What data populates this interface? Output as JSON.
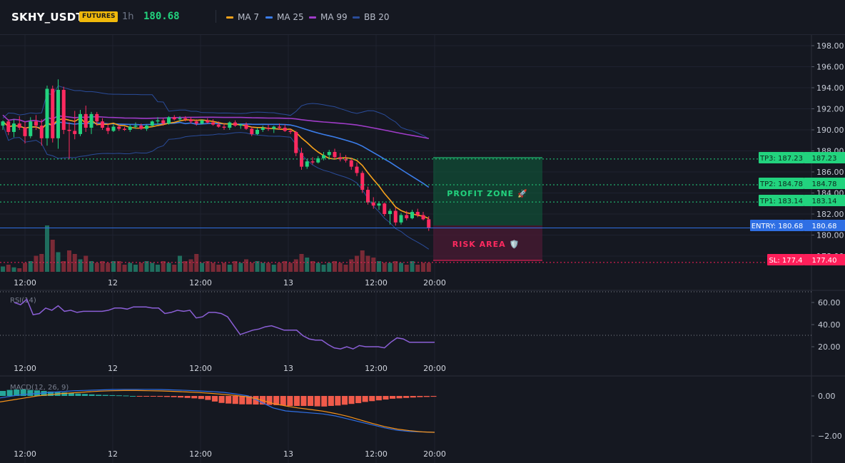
{
  "header": {
    "symbol": "SKHY_USDT",
    "market_badge": "FUTURES",
    "timeframe": "1h",
    "last_price": "180.68",
    "price_color": "#22d37e"
  },
  "indicators": [
    {
      "label": "MA 7",
      "color": "#f7a21b"
    },
    {
      "label": "MA 25",
      "color": "#3b7dea"
    },
    {
      "label": "MA 99",
      "color": "#a03cc9"
    },
    {
      "label": "BB 20",
      "color": "#2a4c9a"
    }
  ],
  "price_axis": {
    "ticks": [
      "198.00",
      "196.00",
      "194.00",
      "192.00",
      "190.00",
      "188.00",
      "186.00",
      "184.00",
      "182.00",
      "180.00",
      "178.00"
    ]
  },
  "time_axis": {
    "labels": [
      "12:00",
      "12",
      "12:00",
      "13",
      "12:00",
      "20:00"
    ]
  },
  "levels": {
    "tp3": {
      "label": "TP3: 187.23",
      "value": "187.23",
      "price": 187.23,
      "color": "#22d37e"
    },
    "tp2": {
      "label": "TP2: 184.78",
      "value": "184.78",
      "price": 184.78,
      "color": "#22d37e"
    },
    "tp1": {
      "label": "TP1: 183.14",
      "value": "183.14",
      "price": 183.14,
      "color": "#22d37e"
    },
    "entry": {
      "label": "ENTRY: 180.68",
      "value": "180.68",
      "price": 180.68,
      "color": "#2f6fe4"
    },
    "sl": {
      "label": "SL: 177.4",
      "value": "177.40",
      "price": 177.4,
      "color": "#ff1f5a"
    }
  },
  "zones": {
    "profit_label": "PROFIT ZONE 🚀",
    "risk_label": "RISK AREA 🛡️"
  },
  "rsi": {
    "title": "RSI(14)",
    "ticks": [
      "60.00",
      "40.00",
      "20.00"
    ],
    "overbought": 70,
    "oversold": 30,
    "color": "#8b5fd6"
  },
  "macd": {
    "title": "MACD(12, 26, 9)",
    "ticks": [
      "0.00",
      "−2.00"
    ],
    "macd_color": "#2f6fe4",
    "signal_color": "#f7931a",
    "hist_pos_color": "#26a69a",
    "hist_neg_color": "#f05a4a"
  },
  "chart_data": {
    "type": "candlestick",
    "title": "",
    "y_range": [
      177,
      199
    ],
    "candles": [
      [
        190.4,
        190.9,
        190.0,
        190.8
      ],
      [
        190.8,
        191.0,
        189.5,
        189.8
      ],
      [
        189.8,
        191.0,
        189.3,
        190.6
      ],
      [
        190.6,
        191.3,
        190.0,
        190.2
      ],
      [
        190.2,
        190.8,
        188.7,
        189.4
      ],
      [
        189.4,
        191.2,
        189.2,
        190.8
      ],
      [
        190.8,
        191.4,
        190.0,
        190.4
      ],
      [
        190.4,
        191.0,
        188.5,
        189.2
      ],
      [
        189.2,
        194.2,
        188.5,
        193.9
      ],
      [
        193.9,
        194.2,
        188.8,
        189.2
      ],
      [
        189.2,
        194.8,
        188.2,
        193.8
      ],
      [
        193.8,
        194.1,
        189.6,
        190.0
      ],
      [
        190.0,
        190.7,
        187.2,
        189.9
      ],
      [
        189.9,
        191.8,
        189.1,
        189.6
      ],
      [
        189.6,
        191.9,
        189.4,
        191.5
      ],
      [
        191.5,
        192.3,
        189.8,
        190.2
      ],
      [
        190.2,
        191.7,
        189.6,
        191.5
      ],
      [
        191.5,
        191.7,
        190.4,
        190.8
      ],
      [
        190.8,
        191.1,
        190.0,
        190.2
      ],
      [
        190.2,
        190.6,
        189.6,
        189.9
      ],
      [
        189.9,
        190.5,
        189.8,
        190.3
      ],
      [
        190.3,
        190.5,
        189.9,
        190.1
      ],
      [
        190.1,
        190.3,
        189.9,
        190.0
      ],
      [
        190.0,
        190.5,
        189.8,
        190.3
      ],
      [
        190.3,
        190.7,
        190.1,
        190.4
      ],
      [
        190.4,
        190.6,
        190.0,
        190.1
      ],
      [
        190.1,
        190.5,
        189.9,
        190.4
      ],
      [
        190.4,
        190.9,
        190.3,
        190.8
      ],
      [
        190.8,
        191.2,
        190.5,
        190.9
      ],
      [
        190.9,
        191.1,
        190.4,
        190.6
      ],
      [
        190.6,
        191.3,
        190.5,
        191.2
      ],
      [
        191.2,
        191.4,
        190.9,
        191.0
      ],
      [
        191.0,
        191.3,
        190.8,
        191.1
      ],
      [
        191.1,
        191.3,
        190.8,
        191.0
      ],
      [
        191.0,
        191.2,
        190.6,
        190.8
      ],
      [
        190.8,
        191.0,
        190.4,
        190.6
      ],
      [
        190.6,
        191.0,
        190.5,
        190.9
      ],
      [
        190.9,
        191.1,
        190.6,
        190.7
      ],
      [
        190.7,
        191.0,
        190.4,
        190.5
      ],
      [
        190.5,
        190.8,
        190.2,
        190.3
      ],
      [
        190.3,
        190.6,
        190.0,
        190.2
      ],
      [
        190.2,
        190.8,
        190.0,
        190.7
      ],
      [
        190.7,
        190.9,
        190.3,
        190.4
      ],
      [
        190.4,
        190.6,
        190.1,
        190.5
      ],
      [
        190.5,
        190.7,
        190.0,
        190.1
      ],
      [
        190.1,
        190.3,
        189.4,
        189.6
      ],
      [
        189.6,
        190.2,
        189.5,
        190.0
      ],
      [
        190.0,
        190.4,
        189.8,
        190.2
      ],
      [
        190.2,
        190.5,
        189.9,
        190.1
      ],
      [
        190.1,
        190.4,
        189.7,
        190.3
      ],
      [
        190.3,
        190.6,
        190.0,
        190.2
      ],
      [
        190.2,
        190.5,
        189.8,
        189.9
      ],
      [
        189.9,
        190.1,
        189.6,
        189.8
      ],
      [
        189.8,
        189.9,
        187.5,
        187.8
      ],
      [
        187.8,
        188.3,
        186.2,
        186.5
      ],
      [
        186.5,
        187.2,
        186.3,
        187.0
      ],
      [
        187.0,
        187.4,
        186.7,
        186.9
      ],
      [
        186.9,
        187.5,
        186.8,
        187.3
      ],
      [
        187.3,
        187.9,
        187.1,
        187.6
      ],
      [
        187.6,
        188.1,
        187.2,
        187.9
      ],
      [
        187.9,
        188.2,
        187.2,
        187.4
      ],
      [
        187.4,
        187.8,
        187.0,
        187.2
      ],
      [
        187.2,
        187.6,
        186.9,
        187.1
      ],
      [
        187.1,
        187.3,
        186.2,
        186.5
      ],
      [
        186.5,
        186.9,
        185.6,
        185.9
      ],
      [
        185.9,
        186.1,
        184.0,
        184.3
      ],
      [
        184.3,
        184.6,
        182.9,
        183.1
      ],
      [
        183.1,
        183.6,
        182.5,
        182.8
      ],
      [
        182.8,
        183.2,
        182.4,
        183.0
      ],
      [
        183.0,
        183.1,
        181.8,
        182.0
      ],
      [
        182.0,
        182.5,
        181.0,
        182.3
      ],
      [
        182.3,
        182.6,
        180.9,
        181.2
      ],
      [
        181.2,
        182.1,
        181.0,
        181.9
      ],
      [
        181.9,
        182.3,
        181.4,
        181.6
      ],
      [
        181.6,
        182.4,
        181.5,
        182.2
      ],
      [
        182.2,
        182.5,
        181.7,
        181.9
      ],
      [
        181.9,
        182.2,
        181.4,
        181.5
      ],
      [
        181.5,
        181.8,
        180.4,
        180.7
      ]
    ],
    "volume_relative": [
      0.3,
      0.4,
      0.25,
      0.2,
      0.5,
      0.6,
      0.9,
      1.0,
      2.6,
      1.8,
      1.1,
      0.6,
      1.2,
      1.0,
      0.7,
      0.9,
      0.6,
      0.5,
      0.6,
      0.5,
      0.6,
      0.6,
      0.4,
      0.5,
      0.4,
      0.5,
      0.6,
      0.5,
      0.4,
      0.6,
      0.5,
      0.4,
      0.9,
      0.6,
      0.7,
      1.0,
      0.5,
      0.6,
      0.5,
      0.4,
      0.5,
      0.4,
      0.6,
      0.5,
      0.7,
      0.5,
      0.6,
      0.5,
      0.5,
      0.4,
      0.5,
      0.6,
      0.5,
      0.7,
      1.0,
      0.8,
      0.6,
      0.5,
      0.4,
      0.5,
      0.6,
      0.5,
      0.4,
      0.7,
      0.9,
      1.2,
      0.9,
      0.8,
      0.6,
      0.5,
      0.5,
      0.6,
      0.5,
      0.4,
      0.6,
      0.4,
      0.5,
      0.5
    ],
    "rsi_values": [
      60,
      58,
      63,
      49,
      50,
      55,
      53,
      57,
      52,
      53,
      51,
      52,
      52,
      52,
      52,
      53,
      55,
      55,
      54,
      56,
      56,
      56,
      55,
      55,
      50,
      51,
      53,
      52,
      53,
      46,
      47,
      51,
      51,
      50,
      47,
      39,
      31,
      33,
      35,
      36,
      38,
      39,
      37,
      35,
      35,
      35,
      30,
      27,
      26,
      26,
      22,
      19,
      18,
      20,
      18,
      21,
      20,
      20,
      20,
      19,
      24,
      28,
      27,
      24,
      24,
      24,
      24,
      24
    ],
    "macd_hist": [
      0.25,
      0.3,
      0.32,
      0.33,
      0.3,
      0.28,
      0.25,
      0.22,
      0.2,
      0.18,
      0.15,
      0.12,
      0.1,
      0.08,
      0.06,
      0.05,
      0.04,
      0.03,
      0.02,
      0.0,
      -0.02,
      -0.03,
      -0.02,
      -0.04,
      -0.05,
      -0.06,
      -0.08,
      -0.1,
      -0.12,
      -0.15,
      -0.2,
      -0.28,
      -0.35,
      -0.38,
      -0.4,
      -0.42,
      -0.42,
      -0.43,
      -0.43,
      -0.45,
      -0.46,
      -0.48,
      -0.5,
      -0.5,
      -0.5,
      -0.5,
      -0.52,
      -0.53,
      -0.5,
      -0.48,
      -0.44,
      -0.4,
      -0.36,
      -0.3,
      -0.26,
      -0.22,
      -0.18,
      -0.14,
      -0.12,
      -0.1,
      -0.08,
      -0.06,
      -0.05,
      -0.04
    ],
    "macd_line": [
      -0.1,
      0.0,
      0.08,
      0.12,
      0.18,
      0.22,
      0.26,
      0.28,
      0.3,
      0.32,
      0.33,
      0.33,
      0.33,
      0.32,
      0.3,
      0.28,
      0.25,
      0.22,
      0.18,
      0.1,
      0.0,
      -0.3,
      -0.6,
      -0.75,
      -0.8,
      -0.85,
      -0.9,
      -1.0,
      -1.15,
      -1.3,
      -1.45,
      -1.6,
      -1.72,
      -1.78,
      -1.8,
      -1.82
    ],
    "signal_line": [
      -0.3,
      -0.2,
      -0.1,
      0.0,
      0.06,
      0.12,
      0.16,
      0.2,
      0.24,
      0.26,
      0.27,
      0.27,
      0.26,
      0.25,
      0.23,
      0.2,
      0.17,
      0.13,
      0.08,
      0.02,
      -0.05,
      -0.2,
      -0.38,
      -0.5,
      -0.6,
      -0.68,
      -0.76,
      -0.88,
      -1.02,
      -1.2,
      -1.38,
      -1.54,
      -1.66,
      -1.74,
      -1.8,
      -1.82
    ]
  }
}
